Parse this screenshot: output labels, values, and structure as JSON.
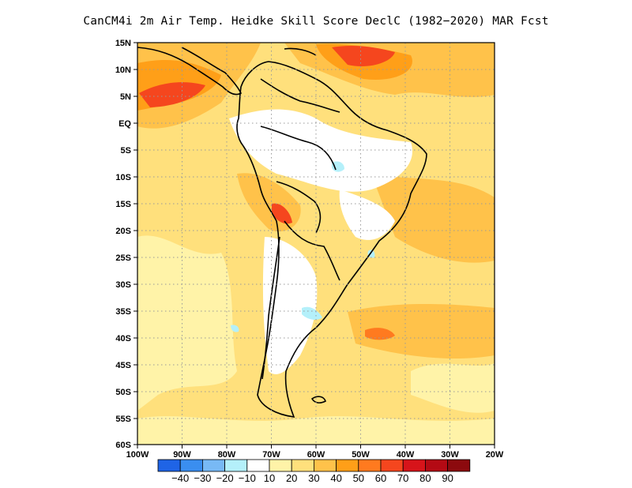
{
  "title": "CanCM4i  2m Air Temp. Heidke Skill Score DeclC (1982−2020) MAR Fcst",
  "map": {
    "lon_range": [
      -100,
      -20
    ],
    "lat_range": [
      -60,
      15
    ],
    "grid_lines": "dotted",
    "x_ticks": [
      "100W",
      "90W",
      "80W",
      "70W",
      "60W",
      "50W",
      "40W",
      "30W",
      "20W"
    ],
    "y_ticks": [
      "15N",
      "10N",
      "5N",
      "EQ",
      "5S",
      "10S",
      "15S",
      "20S",
      "25S",
      "30S",
      "35S",
      "40S",
      "45S",
      "50S",
      "55S",
      "60S"
    ]
  },
  "colorbar": {
    "labels": [
      "−40",
      "−30",
      "−20",
      "−10",
      "10",
      "20",
      "30",
      "40",
      "50",
      "60",
      "70",
      "80",
      "90"
    ],
    "colors": [
      "#1f64e6",
      "#3a8ef0",
      "#78b9f5",
      "#b4f0fa",
      "#ffffff",
      "#fff3a8",
      "#ffe07c",
      "#ffc24a",
      "#ff9f18",
      "#ff7a1f",
      "#f5461e",
      "#d7141a",
      "#b40a14",
      "#8c0a0e"
    ]
  },
  "shading_colors": {
    "weak": "#fff3a8",
    "light": "#ffe07c",
    "moderate": "#ffc24a",
    "strong": "#ff9f18",
    "very_strong": "#f5461e",
    "negative": "#b4f0fa"
  }
}
